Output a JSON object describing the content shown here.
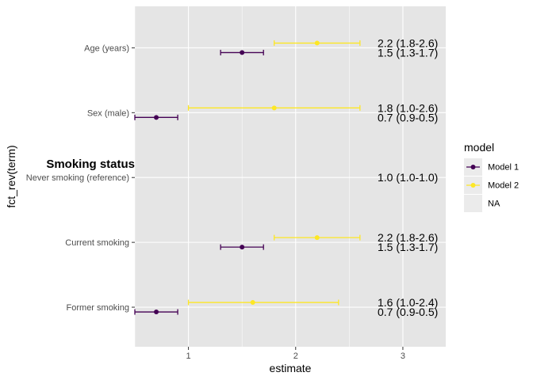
{
  "chart_data": {
    "type": "forest",
    "xlabel": "estimate",
    "ylabel": "fct_rev(term)",
    "xlim": [
      0.5,
      3.4
    ],
    "x_ticks": [
      1,
      2,
      3
    ],
    "grid": true,
    "background": "#e5e5e5",
    "legend": {
      "title": "model",
      "position": "right",
      "entries": [
        {
          "label": "Model 1",
          "color": "#440154"
        },
        {
          "label": "Model 2",
          "color": "#fde725"
        },
        {
          "label": "NA",
          "color": "#ebebeb"
        }
      ]
    },
    "section_label": "Smoking status",
    "terms": [
      "Age (years)",
      "Sex (male)",
      "Never smoking (reference)",
      "Current smoking",
      "Former smoking"
    ],
    "series": [
      {
        "name": "Model 1",
        "color": "#440154",
        "points": [
          {
            "term": "Age (years)",
            "estimate": 1.5,
            "low": 1.3,
            "high": 1.7,
            "label": "1.5 (1.3-1.7)"
          },
          {
            "term": "Sex (male)",
            "estimate": 0.7,
            "low": 0.5,
            "high": 0.9,
            "label": "0.7 (0.9-0.5)"
          },
          {
            "term": "Current smoking",
            "estimate": 1.5,
            "low": 1.3,
            "high": 1.7,
            "label": "1.5 (1.3-1.7)"
          },
          {
            "term": "Former smoking",
            "estimate": 0.7,
            "low": 0.5,
            "high": 0.9,
            "label": "0.7 (0.9-0.5)"
          }
        ]
      },
      {
        "name": "Model 2",
        "color": "#fde725",
        "points": [
          {
            "term": "Age (years)",
            "estimate": 2.2,
            "low": 1.8,
            "high": 2.6,
            "label": "2.2 (1.8-2.6)"
          },
          {
            "term": "Sex (male)",
            "estimate": 1.8,
            "low": 1.0,
            "high": 2.6,
            "label": "1.8 (1.0-2.6)"
          },
          {
            "term": "Current smoking",
            "estimate": 2.2,
            "low": 1.8,
            "high": 2.6,
            "label": "2.2 (1.8-2.6)"
          },
          {
            "term": "Former smoking",
            "estimate": 1.6,
            "low": 1.0,
            "high": 2.4,
            "label": "1.6 (1.0-2.4)"
          }
        ]
      }
    ],
    "reference_label": {
      "term": "Never smoking (reference)",
      "label": "1.0 (1.0-1.0)"
    }
  }
}
